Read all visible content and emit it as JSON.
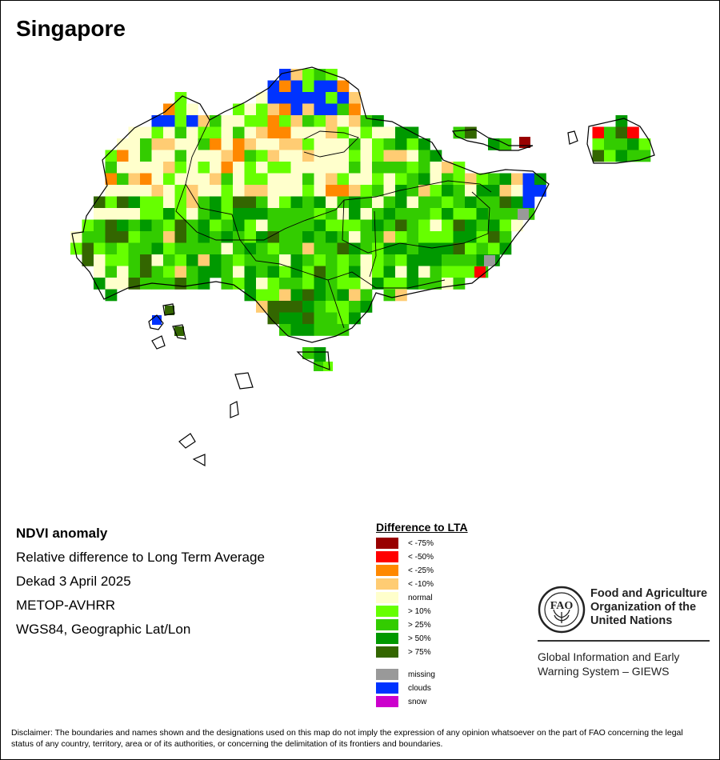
{
  "map": {
    "title": "Singapore",
    "colors": {
      "normal": "#ffffcc",
      "neg10": "#ffcc73",
      "neg25": "#ff8800",
      "neg50": "#ff0000",
      "neg75": "#990000",
      "pos10": "#66ff00",
      "pos25": "#33cc00",
      "pos50": "#009900",
      "pos75": "#336600",
      "missing": "#999999",
      "clouds": "#0033ff",
      "snow": "#cc00cc"
    }
  },
  "info": {
    "heading": "NDVI anomaly",
    "line1": "Relative difference to Long Term Average",
    "line2": "Dekad 3 April 2025",
    "line3": "METOP-AVHRR",
    "line4": "WGS84, Geographic Lat/Lon"
  },
  "legend": {
    "title": "Difference to LTA",
    "items": [
      {
        "label": "< -75%",
        "color": "#990000"
      },
      {
        "label": "< -50%",
        "color": "#ff0000"
      },
      {
        "label": "< -25%",
        "color": "#ff8800"
      },
      {
        "label": "< -10%",
        "color": "#ffcc73"
      },
      {
        "label": "normal",
        "color": "#ffffcc"
      },
      {
        "label": "> 10%",
        "color": "#66ff00"
      },
      {
        "label": "> 25%",
        "color": "#33cc00"
      },
      {
        "label": "> 50%",
        "color": "#009900"
      },
      {
        "label": "> 75%",
        "color": "#336600"
      },
      {
        "label": "missing",
        "color": "#999999"
      },
      {
        "label": "clouds",
        "color": "#0033ff"
      },
      {
        "label": "snow",
        "color": "#cc00cc"
      }
    ]
  },
  "fao": {
    "logo_text": "FAO",
    "org_line1": "Food and Agriculture",
    "org_line2": "Organization of the",
    "org_line3": "United Nations",
    "giews_line1": "Global Information and Early",
    "giews_line2": "Warning System – GIEWS"
  },
  "disclaimer": "Disclaimer: The boundaries and names shown and the designations used on this map do not imply the expression of any opinion whatsoever on the part of FAO concerning the legal status of any country, territory, area or of its authorities, or concerning the delimitation of its frontiers and boundaries."
}
